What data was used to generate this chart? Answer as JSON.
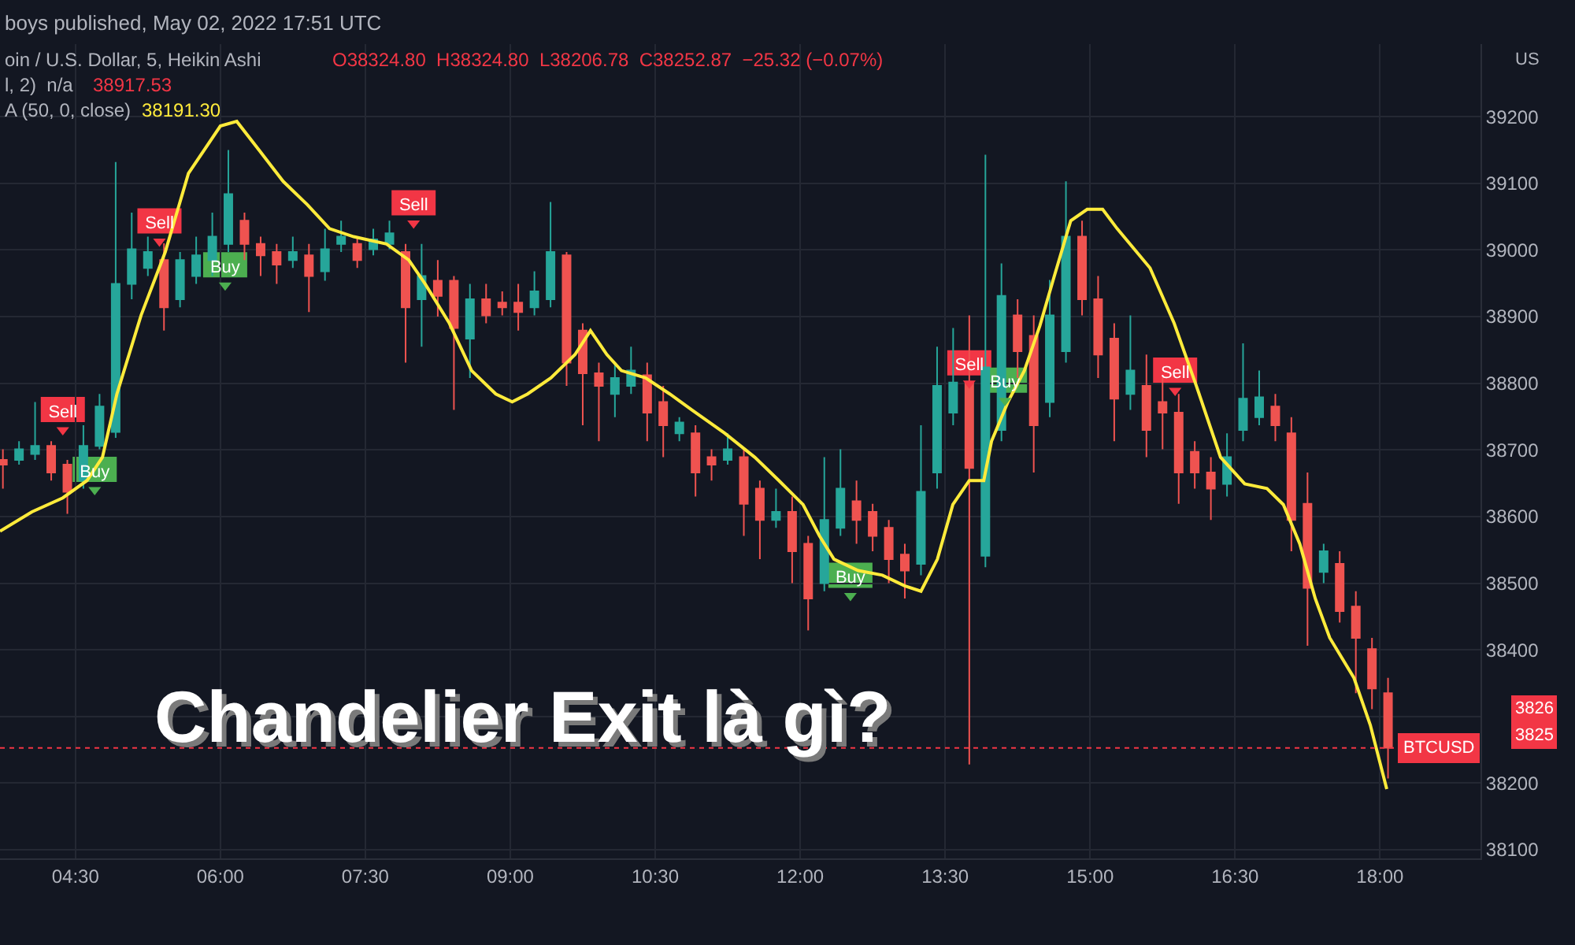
{
  "chart_data": {
    "type": "candlestick",
    "title": "Chandelier Exit là gì?",
    "x": [
      3.75,
      3.917,
      4.083,
      4.25,
      4.417,
      4.583,
      4.75,
      4.917,
      5.083,
      5.25,
      5.417,
      5.583,
      5.75,
      5.917,
      6.083,
      6.25,
      6.417,
      6.583,
      6.75,
      6.917,
      7.083,
      7.25,
      7.417,
      7.583,
      7.75,
      7.917,
      8.083,
      8.25,
      8.417,
      8.583,
      8.75,
      8.917,
      9.083,
      9.25,
      9.417,
      9.583,
      9.75,
      9.917,
      10.083,
      10.25,
      10.417,
      10.583,
      10.75,
      10.917,
      11.083,
      11.25,
      11.417,
      11.583,
      11.75,
      11.917,
      12.083,
      12.25,
      12.417,
      12.583,
      12.75,
      12.917,
      13.083,
      13.25,
      13.417,
      13.583,
      13.75,
      13.917,
      14.083,
      14.25,
      14.417,
      14.583,
      14.75,
      14.917,
      15.083,
      15.25,
      15.417,
      15.583,
      15.75,
      15.917,
      16.083,
      16.25,
      16.417,
      16.583,
      16.75,
      16.917,
      17.083,
      17.25,
      17.417,
      17.583,
      17.75,
      17.917,
      18.083
    ],
    "ohlc": [
      [
        38685,
        38701,
        38642,
        38678
      ],
      [
        38685,
        38713,
        38678,
        38701
      ],
      [
        38694,
        38772,
        38685,
        38706
      ],
      [
        38706,
        38713,
        38654,
        38666
      ],
      [
        38678,
        38685,
        38604,
        38637
      ],
      [
        38654,
        38737,
        38642,
        38706
      ],
      [
        38706,
        38784,
        38701,
        38765
      ],
      [
        38727,
        39132,
        38718,
        38949
      ],
      [
        38949,
        39056,
        38926,
        39001
      ],
      [
        38973,
        39020,
        38961,
        38997
      ],
      [
        38985,
        39010,
        38879,
        38914
      ],
      [
        38926,
        38997,
        38914,
        38985
      ],
      [
        38961,
        39020,
        38949,
        38992
      ],
      [
        38985,
        39056,
        38961,
        39020
      ],
      [
        39009,
        39150,
        38997,
        39084
      ],
      [
        39044,
        39056,
        38985,
        39009
      ],
      [
        39009,
        39020,
        38961,
        38992
      ],
      [
        38997,
        39009,
        38949,
        38978
      ],
      [
        38985,
        39020,
        38973,
        38997
      ],
      [
        38992,
        39009,
        38907,
        38961
      ],
      [
        38968,
        39032,
        38954,
        39001
      ],
      [
        39009,
        39044,
        38997,
        39020
      ],
      [
        39009,
        39020,
        38973,
        38985
      ],
      [
        39001,
        39032,
        38992,
        39016
      ],
      [
        39009,
        39044,
        39001,
        39025
      ],
      [
        38997,
        39009,
        38831,
        38914
      ],
      [
        38926,
        39009,
        38855,
        38961
      ],
      [
        38954,
        38985,
        38900,
        38931
      ],
      [
        38954,
        38961,
        38760,
        38883
      ],
      [
        38867,
        38949,
        38808,
        38926
      ],
      [
        38926,
        38949,
        38890,
        38902
      ],
      [
        38921,
        38938,
        38902,
        38914
      ],
      [
        38921,
        38949,
        38879,
        38907
      ],
      [
        38914,
        38968,
        38902,
        38938
      ],
      [
        38926,
        39072,
        38914,
        38997
      ],
      [
        38992,
        38997,
        38796,
        38831
      ],
      [
        38879,
        38890,
        38737,
        38815
      ],
      [
        38815,
        38831,
        38713,
        38796
      ],
      [
        38784,
        38831,
        38749,
        38808
      ],
      [
        38796,
        38855,
        38784,
        38819
      ],
      [
        38812,
        38831,
        38713,
        38756
      ],
      [
        38772,
        38796,
        38689,
        38737
      ],
      [
        38725,
        38749,
        38713,
        38741
      ],
      [
        38725,
        38737,
        38630,
        38666
      ],
      [
        38689,
        38701,
        38654,
        38678
      ],
      [
        38685,
        38725,
        38678,
        38701
      ],
      [
        38689,
        38701,
        38571,
        38619
      ],
      [
        38642,
        38654,
        38536,
        38595
      ],
      [
        38595,
        38642,
        38583,
        38607
      ],
      [
        38607,
        38630,
        38500,
        38548
      ],
      [
        38559,
        38571,
        38429,
        38477
      ],
      [
        38500,
        38689,
        38488,
        38595
      ],
      [
        38583,
        38701,
        38571,
        38642
      ],
      [
        38623,
        38654,
        38559,
        38595
      ],
      [
        38607,
        38619,
        38548,
        38571
      ],
      [
        38583,
        38595,
        38500,
        38536
      ],
      [
        38543,
        38559,
        38477,
        38519
      ],
      [
        38529,
        38737,
        38512,
        38637
      ],
      [
        38666,
        38855,
        38642,
        38796
      ],
      [
        38756,
        38883,
        38737,
        38801
      ],
      [
        38801,
        38902,
        38228,
        38673
      ],
      [
        38541,
        39143,
        38524,
        38824
      ],
      [
        38730,
        38980,
        38713,
        38931
      ],
      [
        38902,
        38926,
        38808,
        38848
      ],
      [
        38871,
        38902,
        38666,
        38737
      ],
      [
        38772,
        38955,
        38749,
        38902
      ],
      [
        38848,
        39103,
        38831,
        39020
      ],
      [
        39020,
        39044,
        38902,
        38926
      ],
      [
        38926,
        38961,
        38808,
        38843
      ],
      [
        38867,
        38890,
        38713,
        38777
      ],
      [
        38784,
        38902,
        38760,
        38819
      ],
      [
        38796,
        38843,
        38689,
        38730
      ],
      [
        38772,
        38808,
        38701,
        38756
      ],
      [
        38756,
        38784,
        38619,
        38666
      ],
      [
        38697,
        38713,
        38642,
        38666
      ],
      [
        38666,
        38689,
        38595,
        38642
      ],
      [
        38649,
        38725,
        38630,
        38689
      ],
      [
        38730,
        38860,
        38713,
        38777
      ],
      [
        38749,
        38819,
        38737,
        38779
      ],
      [
        38765,
        38784,
        38713,
        38737
      ],
      [
        38725,
        38749,
        38548,
        38595
      ],
      [
        38619,
        38666,
        38406,
        38493
      ],
      [
        38517,
        38559,
        38500,
        38548
      ],
      [
        38529,
        38548,
        38441,
        38458
      ],
      [
        38465,
        38488,
        38335,
        38418
      ],
      [
        38401,
        38418,
        38311,
        38342
      ],
      [
        38335,
        38358,
        38207,
        38253
      ]
    ],
    "series": [
      {
        "type": "line",
        "color": "#ffeb3b",
        "x": [
          3.72,
          4.05,
          4.37,
          4.62,
          4.78,
          4.93,
          5.18,
          5.43,
          5.67,
          6.0,
          6.17,
          6.4,
          6.65,
          6.9,
          7.13,
          7.38,
          7.72,
          7.95,
          8.12,
          8.37,
          8.6,
          8.85,
          9.02,
          9.18,
          9.42,
          9.67,
          9.83,
          10.0,
          10.15,
          10.4,
          10.65,
          10.88,
          11.22,
          11.53,
          11.78,
          12.03,
          12.2,
          12.35,
          12.6,
          12.85,
          13.08,
          13.25,
          13.42,
          13.58,
          13.75,
          13.9,
          13.98,
          14.15,
          14.32,
          14.48,
          14.63,
          14.8,
          14.97,
          15.13,
          15.28,
          15.62,
          15.87,
          16.1,
          16.35,
          16.6,
          16.83,
          17.0,
          17.17,
          17.33,
          17.48,
          17.73,
          17.9,
          18.07
        ],
        "values": [
          38578,
          38607,
          38628,
          38654,
          38689,
          38784,
          38902,
          38997,
          39115,
          39186,
          39193,
          39150,
          39103,
          39068,
          39032,
          39020,
          39009,
          38985,
          38949,
          38890,
          38819,
          38784,
          38772,
          38784,
          38808,
          38843,
          38879,
          38843,
          38819,
          38808,
          38784,
          38760,
          38725,
          38689,
          38654,
          38618,
          38571,
          38536,
          38519,
          38512,
          38496,
          38488,
          38536,
          38618,
          38654,
          38654,
          38713,
          38772,
          38819,
          38886,
          38961,
          39044,
          39061,
          39061,
          39032,
          38973,
          38890,
          38796,
          38689,
          38649,
          38642,
          38618,
          38559,
          38477,
          38418,
          38358,
          38287,
          38191
        ]
      },
      {
        "type": "scatter",
        "color": "#f23645",
        "marker": "triangle",
        "x": [
          4.37,
          5.37,
          8.0,
          13.75,
          15.88
        ],
        "values": [
          38730,
          39013,
          39040,
          38800,
          38789
        ],
        "value_labels": [
          "Sell",
          "Sell",
          "Sell",
          "Sell",
          "Sell"
        ]
      },
      {
        "type": "scatter",
        "color": "#4caf50",
        "marker": "triangle",
        "x": [
          4.7,
          6.05,
          12.52,
          14.12
        ],
        "values": [
          38640,
          38947,
          38481,
          38774
        ],
        "value_labels": [
          "Buy",
          "Buy",
          "Buy",
          "Buy"
        ]
      }
    ],
    "xlim": [
      3.72,
      19.04
    ],
    "xticks": [
      {
        "value": 4.5,
        "label": "04:30"
      },
      {
        "value": 6,
        "label": "06:00"
      },
      {
        "value": 7.5,
        "label": "07:30"
      },
      {
        "value": 9,
        "label": "09:00"
      },
      {
        "value": 10.5,
        "label": "10:30"
      },
      {
        "value": 12,
        "label": "12:00"
      },
      {
        "value": 13.5,
        "label": "13:30"
      },
      {
        "value": 15,
        "label": "15:00"
      },
      {
        "value": 16.5,
        "label": "16:30"
      },
      {
        "value": 18,
        "label": "18:00"
      }
    ],
    "ylim": [
      38087,
      39309
    ],
    "yticks": [
      38100,
      38200,
      {
        "value": 38300,
        "label": null
      },
      38400,
      38500,
      38600,
      38700,
      38800,
      38900,
      39000,
      39100,
      39200
    ],
    "grid": true,
    "ref_lines": [
      {
        "axis": "y",
        "value": 38252.87,
        "label": "BTCUSD",
        "color": "#f23645",
        "line_style": "dotted"
      }
    ],
    "annotations": [
      "boys published, May 02, 2022 17:51 UTC",
      "oin / U.S. Dollar, 5, Heikin Ashi",
      "O38324.80  H38324.80  L38206.78  C38252.87  −25.32 (−0.07%)",
      "l, 2)  n/a",
      "38917.53",
      "A (50, 0, close)",
      "38191.30",
      "US",
      "3826",
      "3825"
    ]
  }
}
